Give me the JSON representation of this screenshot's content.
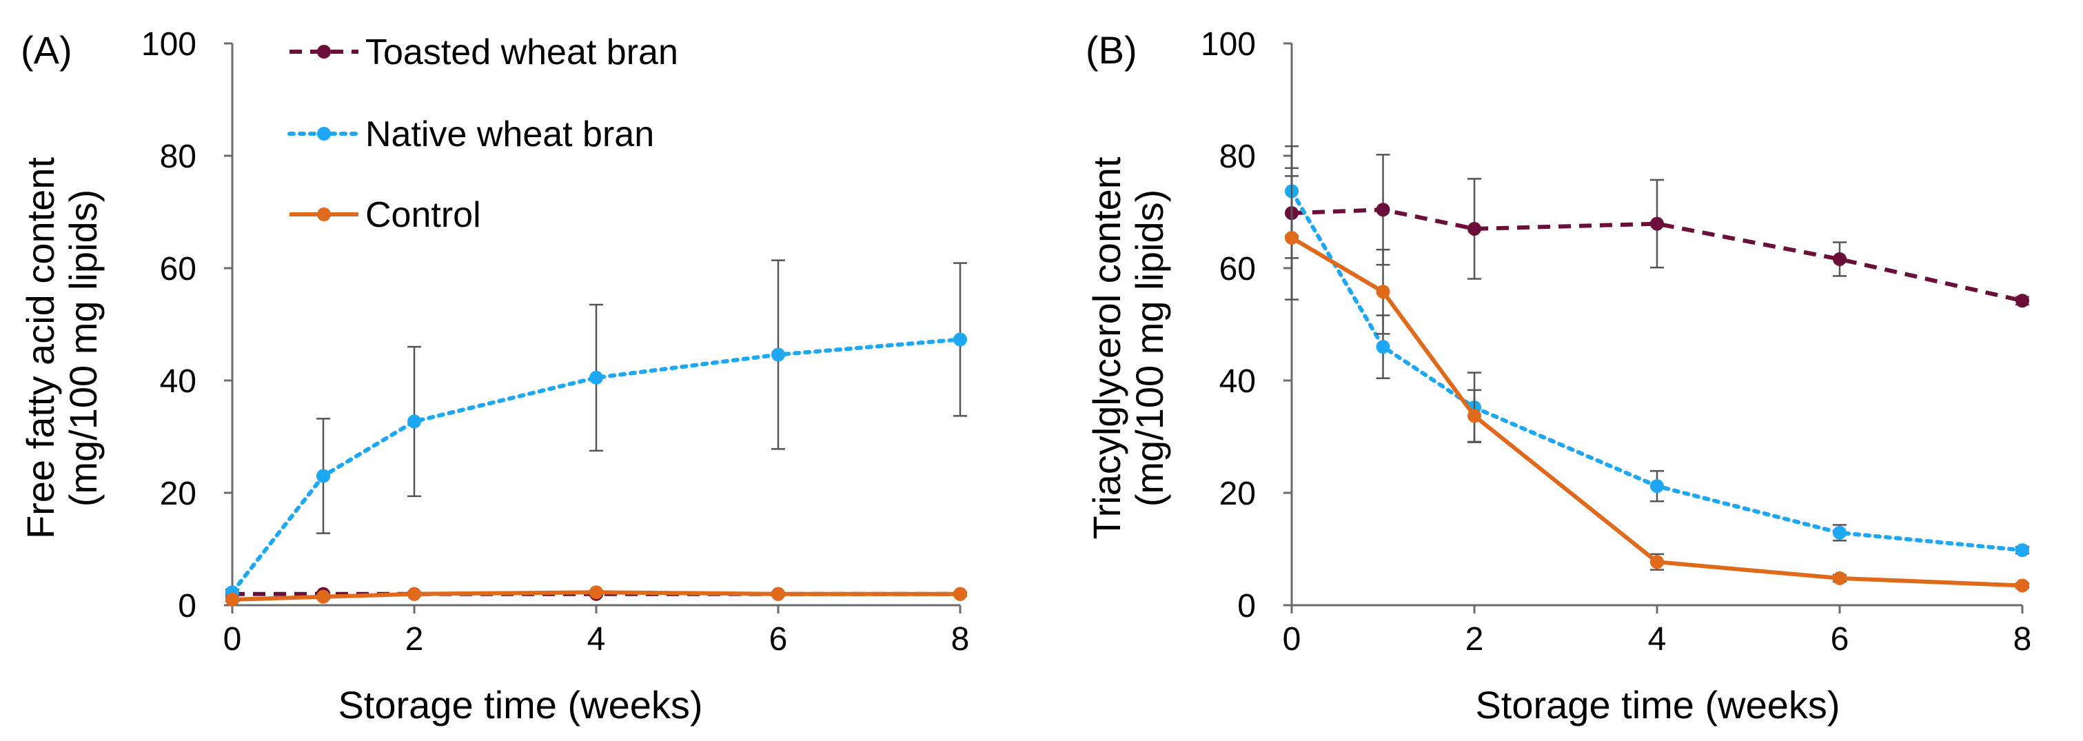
{
  "chart_data": [
    {
      "type": "line",
      "panel_label": "(A)",
      "xlabel": "Storage time (weeks)",
      "ylabel_lines": [
        "Free fatty acid content",
        "(mg/100 mg lipids)"
      ],
      "xlim": [
        0,
        8
      ],
      "ylim": [
        0,
        100
      ],
      "xticks": [
        0,
        2,
        4,
        6,
        8
      ],
      "yticks": [
        0,
        20,
        40,
        60,
        80,
        100
      ],
      "legend_position": "top-left",
      "x": [
        0,
        1,
        2,
        4,
        6,
        8
      ],
      "series": [
        {
          "name": "Toasted wheat bran",
          "style": "dashed",
          "color": "#6b0f3a",
          "values": [
            2,
            2,
            2,
            2,
            2,
            2
          ],
          "errors": [
            0.3,
            0.3,
            0.3,
            0.3,
            0.3,
            0.3
          ]
        },
        {
          "name": "Native wheat bran",
          "style": "dotted",
          "color": "#1ea7f2",
          "values": [
            2.3,
            23,
            32.7,
            40.5,
            44.6,
            47.3
          ],
          "errors": [
            0.5,
            10.2,
            13.3,
            13,
            16.8,
            13.6
          ]
        },
        {
          "name": "Control",
          "style": "solid",
          "color": "#e06a1b",
          "values": [
            1,
            1.5,
            2,
            2.3,
            2,
            2
          ],
          "errors": [
            0.3,
            0.3,
            0.3,
            0.3,
            0.3,
            0.3
          ]
        }
      ]
    },
    {
      "type": "line",
      "panel_label": "(B)",
      "xlabel": "Storage time (weeks)",
      "ylabel_lines": [
        "Triacylglycerol content",
        "(mg/100 mg lipids)"
      ],
      "xlim": [
        0,
        8
      ],
      "ylim": [
        0,
        100
      ],
      "xticks": [
        0,
        2,
        4,
        6,
        8
      ],
      "yticks": [
        0,
        20,
        40,
        60,
        80,
        100
      ],
      "x": [
        0,
        1,
        2,
        4,
        6,
        8
      ],
      "series": [
        {
          "name": "Toasted wheat bran",
          "style": "dashed",
          "color": "#6b0f3a",
          "values": [
            69.8,
            70.4,
            67,
            67.9,
            61.6,
            54.2
          ],
          "errors": [
            8,
            9.8,
            8.9,
            7.8,
            3,
            0.7
          ]
        },
        {
          "name": "Native wheat bran",
          "style": "dotted",
          "color": "#1ea7f2",
          "values": [
            73.7,
            46,
            35.2,
            21.2,
            12.9,
            9.8
          ],
          "errors": [
            8,
            5.6,
            6.2,
            2.7,
            1.4,
            0.6
          ]
        },
        {
          "name": "Control",
          "style": "solid",
          "color": "#e06a1b",
          "values": [
            65.4,
            55.8,
            33.7,
            7.7,
            4.8,
            3.5
          ],
          "errors": [
            11,
            7.5,
            4.6,
            1.4,
            0.6,
            0.4
          ]
        }
      ]
    }
  ]
}
